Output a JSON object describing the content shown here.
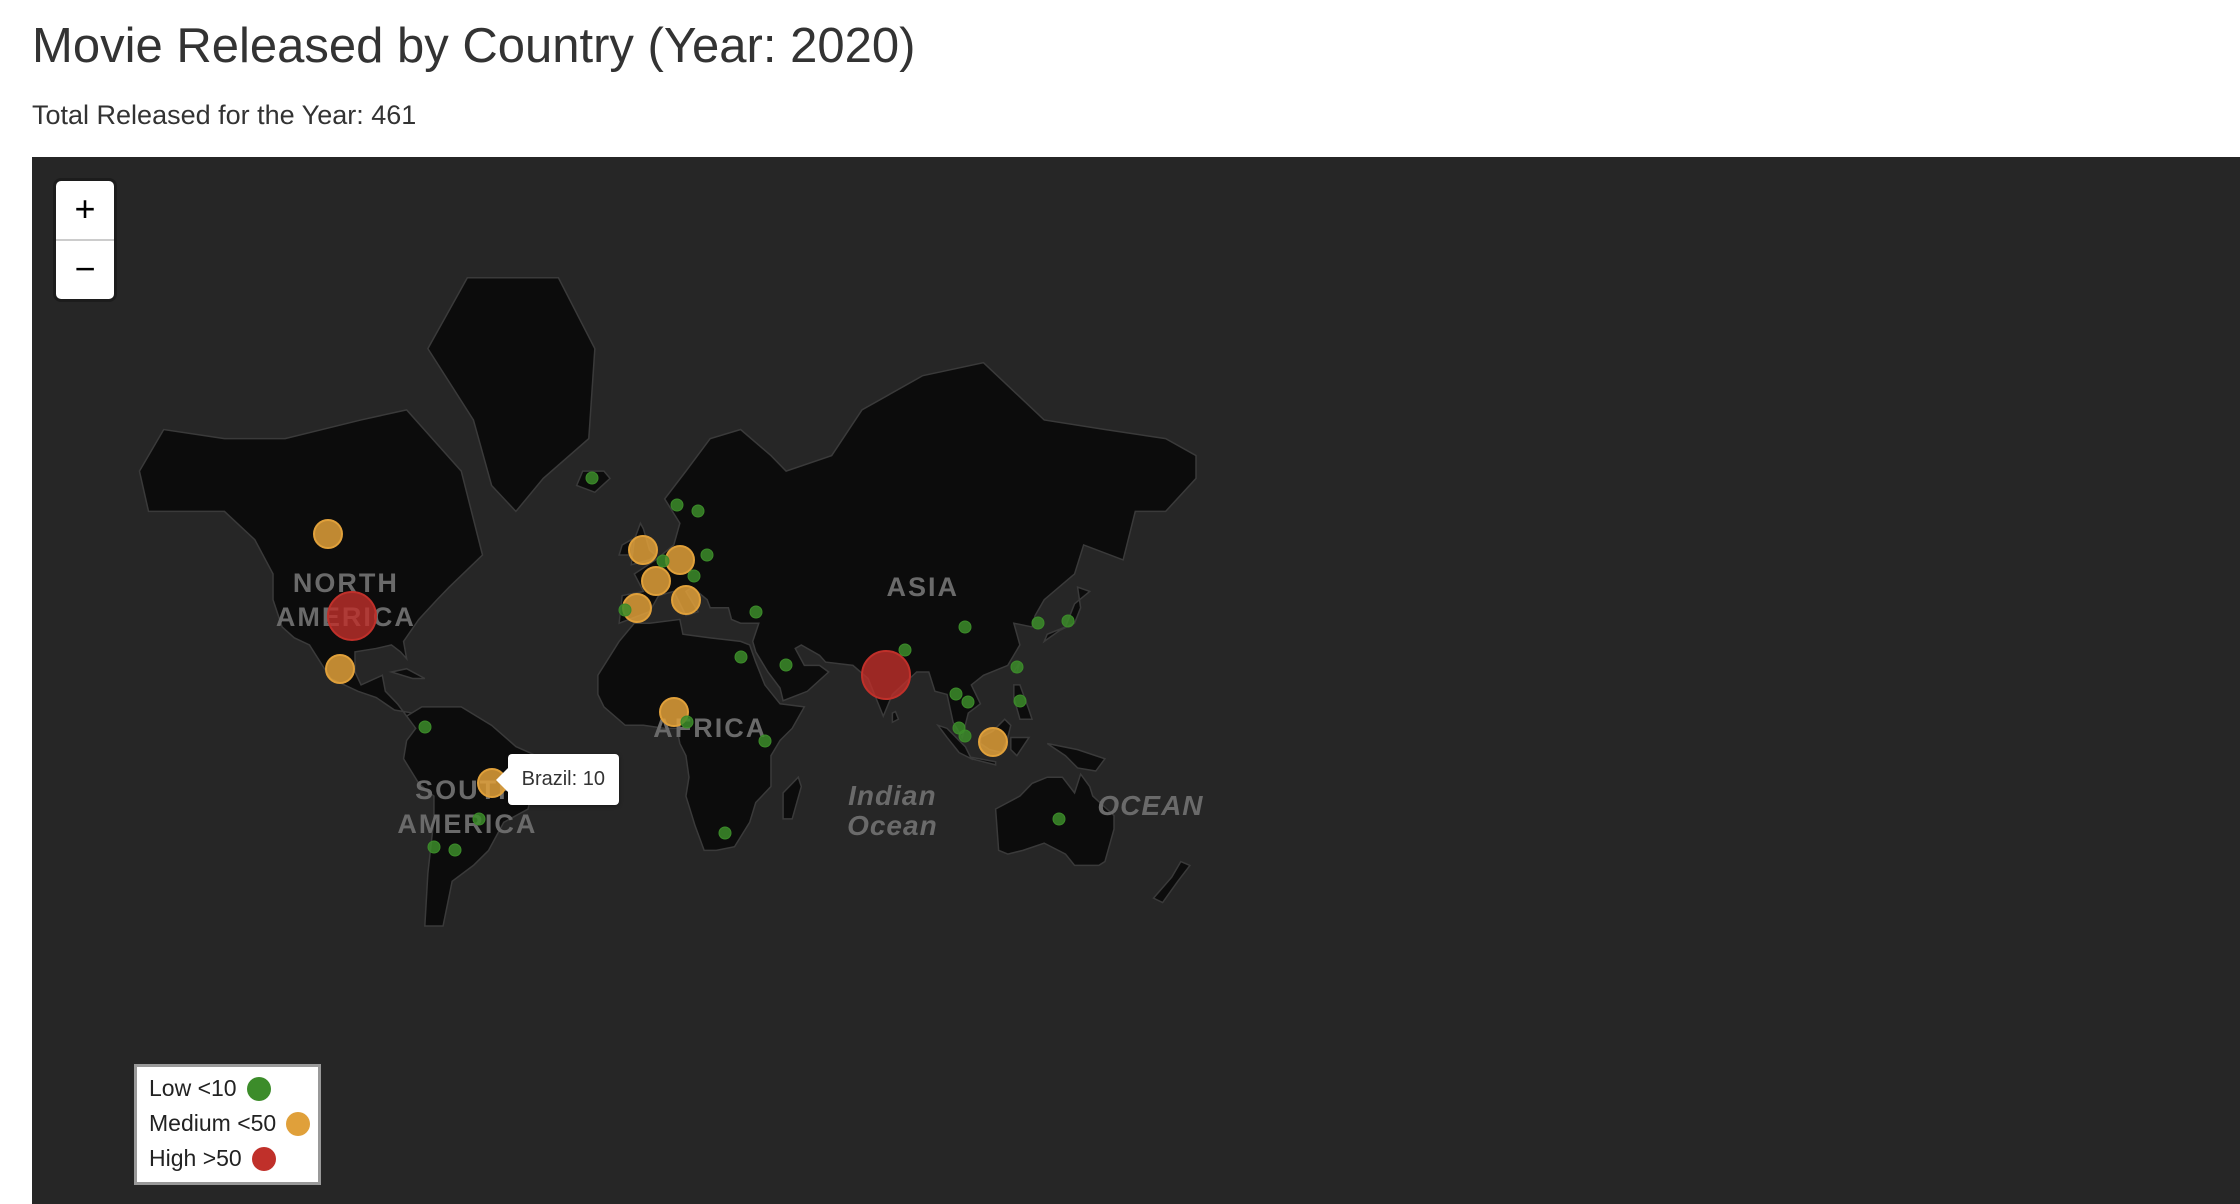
{
  "title": "Movie Released by Country (Year: 2020)",
  "subtitle": "Total Released for the Year: 461",
  "map": {
    "zoom_in_label": "+",
    "zoom_out_label": "−",
    "region_labels": [
      {
        "text": "NORTH\nAMERICA",
        "lon": -100,
        "lat": 46
      },
      {
        "text": "ASIA",
        "lon": 90,
        "lat": 45
      },
      {
        "text": "AFRICA",
        "lon": 20,
        "lat": 4
      },
      {
        "text": "SOUTH\nAMERICA",
        "lon": -60,
        "lat": -16
      }
    ],
    "ocean_labels": [
      {
        "text": "Indian\nOcean",
        "lon": 80,
        "lat": -18
      },
      {
        "text": "OCEAN",
        "lon": 165,
        "lat": -21
      }
    ]
  },
  "colors": {
    "low": "#3c8c2a",
    "medium": "#e0a03a",
    "high": "#c0302a",
    "land": "#0c0c0c",
    "water": "#262626"
  },
  "markers": [
    {
      "country": "United States",
      "lon": -98,
      "lat": 38,
      "level": "high"
    },
    {
      "country": "India",
      "lon": 78,
      "lat": 21,
      "level": "high"
    },
    {
      "country": "Canada",
      "lon": -106,
      "lat": 56,
      "level": "medium"
    },
    {
      "country": "Mexico",
      "lon": -102,
      "lat": 23,
      "level": "medium"
    },
    {
      "country": "United Kingdom",
      "lon": -2,
      "lat": 53,
      "level": "medium"
    },
    {
      "country": "Germany",
      "lon": 10,
      "lat": 51,
      "level": "medium"
    },
    {
      "country": "France",
      "lon": 2,
      "lat": 46.5,
      "level": "medium"
    },
    {
      "country": "Spain",
      "lon": -4,
      "lat": 40,
      "level": "medium"
    },
    {
      "country": "Italy",
      "lon": 12,
      "lat": 42,
      "level": "medium"
    },
    {
      "country": "Nigeria",
      "lon": 8,
      "lat": 9.5,
      "level": "medium"
    },
    {
      "country": "Indonesia",
      "lon": 113,
      "lat": -0.5,
      "level": "medium"
    },
    {
      "country": "Brazil",
      "lon": -52,
      "lat": -14,
      "level": "medium"
    },
    {
      "country": "Iceland",
      "lon": -19,
      "lat": 65,
      "level": "low"
    },
    {
      "country": "Norway",
      "lon": 9,
      "lat": 61,
      "level": "low"
    },
    {
      "country": "Sweden",
      "lon": 16,
      "lat": 60,
      "level": "low"
    },
    {
      "country": "Belgium",
      "lon": 4.5,
      "lat": 50.8,
      "level": "low"
    },
    {
      "country": "Poland",
      "lon": 19,
      "lat": 52,
      "level": "low"
    },
    {
      "country": "Austria",
      "lon": 14.5,
      "lat": 47.5,
      "level": "low"
    },
    {
      "country": "Portugal",
      "lon": -8,
      "lat": 39.5,
      "level": "low"
    },
    {
      "country": "Turkey",
      "lon": 35,
      "lat": 39,
      "level": "low"
    },
    {
      "country": "Egypt",
      "lon": 30,
      "lat": 26.5,
      "level": "low"
    },
    {
      "country": "Saudi Arabia",
      "lon": 45,
      "lat": 24,
      "level": "low"
    },
    {
      "country": "Nepal",
      "lon": 84,
      "lat": 28.5,
      "level": "low"
    },
    {
      "country": "China",
      "lon": 104,
      "lat": 35,
      "level": "low"
    },
    {
      "country": "South Korea",
      "lon": 127.8,
      "lat": 36,
      "level": "low"
    },
    {
      "country": "Japan",
      "lon": 138,
      "lat": 36.5,
      "level": "low"
    },
    {
      "country": "Taiwan",
      "lon": 121,
      "lat": 23.5,
      "level": "low"
    },
    {
      "country": "Thailand",
      "lon": 101,
      "lat": 15,
      "level": "low"
    },
    {
      "country": "Cambodia",
      "lon": 105,
      "lat": 12.5,
      "level": "low"
    },
    {
      "country": "Philippines",
      "lon": 122,
      "lat": 12.8,
      "level": "low"
    },
    {
      "country": "Malaysia",
      "lon": 102,
      "lat": 4,
      "level": "low"
    },
    {
      "country": "Singapore",
      "lon": 103.8,
      "lat": 1.4,
      "level": "low"
    },
    {
      "country": "Kenya",
      "lon": 38,
      "lat": 0,
      "level": "low"
    },
    {
      "country": "Cameroon",
      "lon": 12.5,
      "lat": 6,
      "level": "low"
    },
    {
      "country": "South Africa",
      "lon": 25,
      "lat": -29,
      "level": "low"
    },
    {
      "country": "Colombia",
      "lon": -74,
      "lat": 4.5,
      "level": "low"
    },
    {
      "country": "Chile",
      "lon": -71,
      "lat": -33,
      "level": "low"
    },
    {
      "country": "Argentina",
      "lon": -64,
      "lat": -34,
      "level": "low"
    },
    {
      "country": "Uruguay",
      "lon": -56,
      "lat": -25,
      "level": "low"
    },
    {
      "country": "Australia",
      "lon": 135,
      "lat": -25,
      "level": "low"
    }
  ],
  "tooltip": {
    "country": "Brazil",
    "lon": -52,
    "lat": -14,
    "text": "Brazil: 10"
  },
  "legend": [
    {
      "label": "Low <10",
      "level": "low"
    },
    {
      "label": "Medium <50",
      "level": "medium"
    },
    {
      "label": "High >50",
      "level": "high"
    }
  ]
}
